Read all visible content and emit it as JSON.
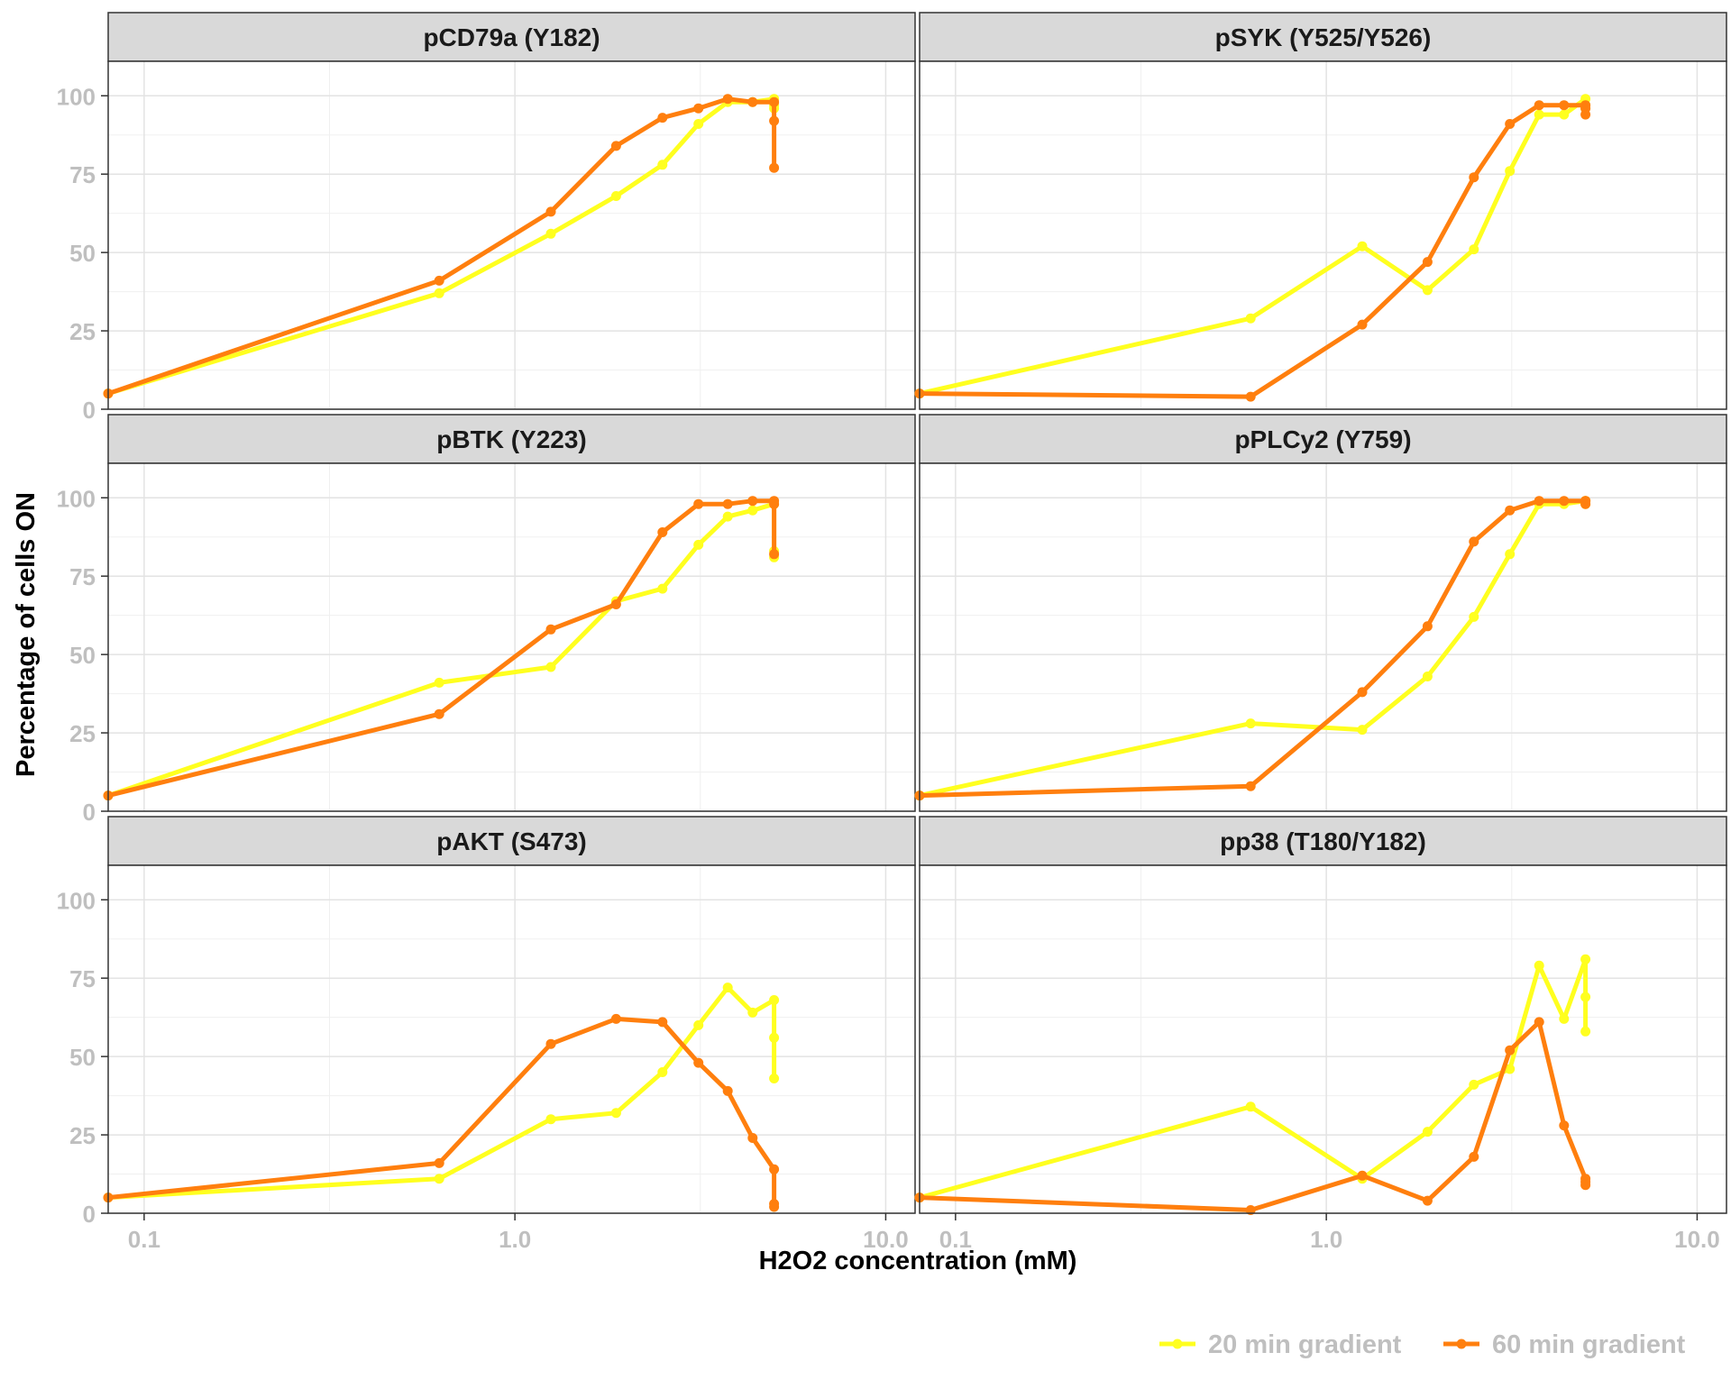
{
  "chart_data": {
    "type": "line",
    "layout": "facet-grid",
    "xlabel": "H2O2 concentration (mM)",
    "ylabel": "Percentage of cells ON",
    "x_scale": "log10",
    "xlim": [
      0.08,
      12.0
    ],
    "ylim": [
      0,
      111
    ],
    "x_ticks": [
      0.1,
      1.0,
      10.0
    ],
    "x_tick_labels": [
      "0.1",
      "1.0",
      "10.0"
    ],
    "y_ticks": [
      0,
      25,
      50,
      75,
      100
    ],
    "y_tick_labels": [
      "0",
      "25",
      "50",
      "75",
      "100"
    ],
    "grid": true,
    "legend_position": "bottom-right",
    "series_styles": [
      {
        "name": "20 min gradient",
        "color": "#FFFF1F"
      },
      {
        "name": "60 min gradient",
        "color": "#FF7F0E"
      }
    ],
    "panels": [
      {
        "title": "pCD79a (Y182)",
        "series": [
          {
            "name": "20 min gradient",
            "x": [
              0.08,
              0.625,
              1.25,
              1.875,
              2.5,
              3.125,
              3.75,
              4.375,
              5,
              5,
              5
            ],
            "y": [
              5,
              37,
              56,
              68,
              78,
              91,
              98,
              98,
              99,
              97,
              96
            ]
          },
          {
            "name": "60 min gradient",
            "x": [
              0.08,
              0.625,
              1.25,
              1.875,
              2.5,
              3.125,
              3.75,
              4.375,
              5,
              5,
              5
            ],
            "y": [
              5,
              41,
              63,
              84,
              93,
              96,
              99,
              98,
              98,
              92,
              77
            ]
          }
        ]
      },
      {
        "title": "pSYK (Y525/Y526)",
        "series": [
          {
            "name": "20 min gradient",
            "x": [
              0.08,
              0.625,
              1.25,
              1.875,
              2.5,
              3.125,
              3.75,
              4.375,
              5,
              5,
              5
            ],
            "y": [
              5,
              29,
              52,
              38,
              51,
              76,
              94,
              94,
              99,
              97,
              96
            ]
          },
          {
            "name": "60 min gradient",
            "x": [
              0.08,
              0.625,
              1.25,
              1.875,
              2.5,
              3.125,
              3.75,
              4.375,
              5,
              5,
              5
            ],
            "y": [
              5,
              4,
              27,
              47,
              74,
              91,
              97,
              97,
              97,
              96,
              94
            ]
          }
        ]
      },
      {
        "title": "pBTK (Y223)",
        "series": [
          {
            "name": "20 min gradient",
            "x": [
              0.08,
              0.625,
              1.25,
              1.875,
              2.5,
              3.125,
              3.75,
              4.375,
              5,
              5,
              5
            ],
            "y": [
              5,
              41,
              46,
              67,
              71,
              85,
              94,
              96,
              98,
              83,
              81
            ]
          },
          {
            "name": "60 min gradient",
            "x": [
              0.08,
              0.625,
              1.25,
              1.875,
              2.5,
              3.125,
              3.75,
              4.375,
              5,
              5,
              5
            ],
            "y": [
              5,
              31,
              58,
              66,
              89,
              98,
              98,
              99,
              99,
              98,
              82
            ]
          }
        ]
      },
      {
        "title": "pPLCy2 (Y759)",
        "series": [
          {
            "name": "20 min gradient",
            "x": [
              0.08,
              0.625,
              1.25,
              1.875,
              2.5,
              3.125,
              3.75,
              4.375,
              5,
              5,
              5
            ],
            "y": [
              5,
              28,
              26,
              43,
              62,
              82,
              98,
              98,
              99,
              99,
              98
            ]
          },
          {
            "name": "60 min gradient",
            "x": [
              0.08,
              0.625,
              1.25,
              1.875,
              2.5,
              3.125,
              3.75,
              4.375,
              5,
              5,
              5
            ],
            "y": [
              5,
              8,
              38,
              59,
              86,
              96,
              99,
              99,
              99,
              99,
              98
            ]
          }
        ]
      },
      {
        "title": "pAKT (S473)",
        "series": [
          {
            "name": "20 min gradient",
            "x": [
              0.08,
              0.625,
              1.25,
              1.875,
              2.5,
              3.125,
              3.75,
              4.375,
              5,
              5,
              5
            ],
            "y": [
              5,
              11,
              30,
              32,
              45,
              60,
              72,
              64,
              68,
              56,
              43
            ]
          },
          {
            "name": "60 min gradient",
            "x": [
              0.08,
              0.625,
              1.25,
              1.875,
              2.5,
              3.125,
              3.75,
              4.375,
              5,
              5,
              5
            ],
            "y": [
              5,
              16,
              54,
              62,
              61,
              48,
              39,
              24,
              14,
              3,
              2
            ]
          }
        ]
      },
      {
        "title": "pp38 (T180/Y182)",
        "series": [
          {
            "name": "20 min gradient",
            "x": [
              0.08,
              0.625,
              1.25,
              1.875,
              2.5,
              3.125,
              3.75,
              4.375,
              5,
              5,
              5
            ],
            "y": [
              5,
              34,
              11,
              26,
              41,
              46,
              79,
              62,
              81,
              69,
              58
            ]
          },
          {
            "name": "60 min gradient",
            "x": [
              0.08,
              0.625,
              1.25,
              1.875,
              2.5,
              3.125,
              3.75,
              4.375,
              5,
              5,
              5
            ],
            "y": [
              5,
              1,
              12,
              4,
              18,
              52,
              61,
              28,
              11,
              10,
              9
            ]
          }
        ]
      }
    ]
  }
}
